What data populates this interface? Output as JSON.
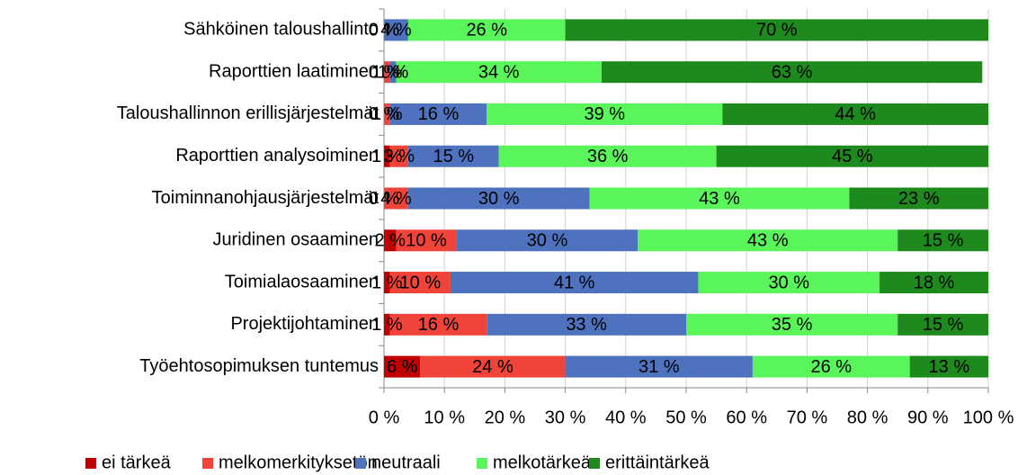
{
  "chart_data": {
    "type": "stacked_bar_horizontal",
    "categories": [
      "Sähköinen taloushallinto",
      "Raporttien laatiminen",
      "Taloushallinnon erillisjärjestelmät",
      "Raporttien analysoiminen",
      "Toiminnanohjausjärjestelmät",
      "Juridinen osaaminen",
      "Toimialaosaaminen",
      "Projektijohtaminen",
      "Työehtosopimuksen tuntemus"
    ],
    "series": [
      {
        "name": "ei tärkeä",
        "color": "#c00000",
        "values": [
          0,
          0,
          0,
          1,
          0,
          2,
          1,
          1,
          6
        ],
        "value_labels": [
          "0 %",
          "0 %",
          "0 %",
          "1 %",
          "0 %",
          "2 %",
          "1 %",
          "1 %",
          "6 %"
        ]
      },
      {
        "name": "melkomerkityksetön",
        "color": "#f0433a",
        "values": [
          0,
          1,
          1,
          3,
          4,
          10,
          10,
          16,
          24
        ],
        "value_labels": [
          "0 %",
          "1 %",
          "1 %",
          "3 %",
          "4 %",
          "10 %",
          "10 %",
          "16 %",
          "24 %"
        ]
      },
      {
        "name": "neutraali",
        "color": "#4f72be",
        "values": [
          4,
          1,
          16,
          15,
          30,
          30,
          41,
          33,
          31
        ],
        "value_labels": [
          "4 %",
          "1 %",
          "16 %",
          "15 %",
          "30 %",
          "30 %",
          "41 %",
          "33 %",
          "31 %"
        ]
      },
      {
        "name": "melkotärkeä",
        "color": "#5af55a",
        "values": [
          26,
          34,
          39,
          36,
          43,
          43,
          30,
          35,
          26
        ],
        "value_labels": [
          "26 %",
          "34 %",
          "39 %",
          "36 %",
          "43 %",
          "43 %",
          "30 %",
          "35 %",
          "26 %"
        ]
      },
      {
        "name": "erittäintärkeä",
        "color": "#1e8a1e",
        "values": [
          70,
          63,
          44,
          45,
          23,
          15,
          18,
          15,
          13
        ],
        "value_labels": [
          "70 %",
          "63 %",
          "44 %",
          "45 %",
          "23 %",
          "15 %",
          "18 %",
          "15 %",
          "13 %"
        ]
      }
    ],
    "xlim": [
      0,
      100
    ],
    "xticks": [
      {
        "value": 0,
        "label": "0 %"
      },
      {
        "value": 10,
        "label": "10 %"
      },
      {
        "value": 20,
        "label": "20 %"
      },
      {
        "value": 30,
        "label": "30 %"
      },
      {
        "value": 40,
        "label": "40 %"
      },
      {
        "value": 50,
        "label": "50 %"
      },
      {
        "value": 60,
        "label": "60 %"
      },
      {
        "value": 70,
        "label": "70 %"
      },
      {
        "value": 80,
        "label": "80 %"
      },
      {
        "value": 90,
        "label": "90 %"
      },
      {
        "value": 100,
        "label": "100 %"
      }
    ],
    "grid": true,
    "legend": "bottom"
  }
}
